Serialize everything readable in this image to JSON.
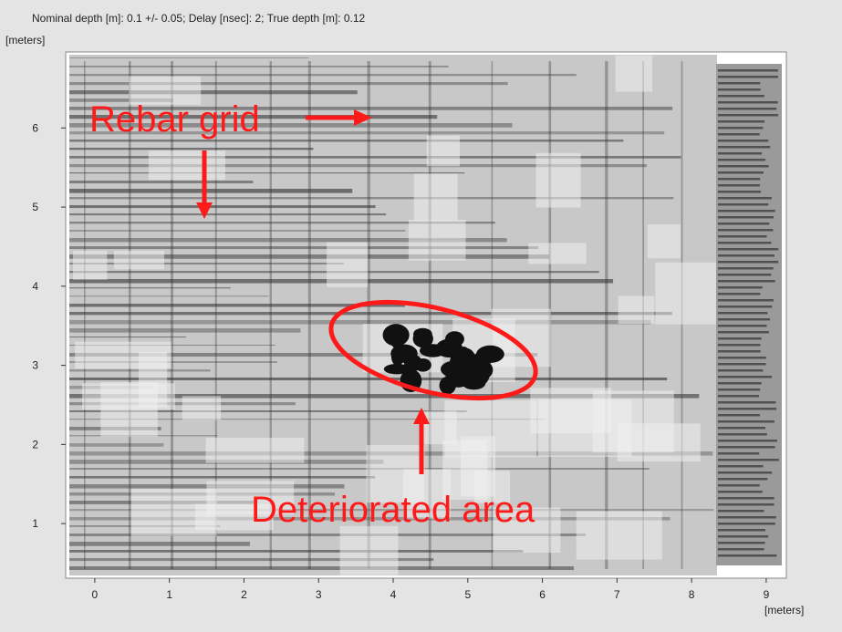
{
  "chart_data": {
    "type": "image",
    "title": "Nominal depth [m]: 0.1 +/- 0.05;  Delay [nsec]: 2;  True depth [m]: 0.12",
    "x_label": "[meters]",
    "y_label": "[meters]",
    "xlim": [
      -0.39,
      9.27
    ],
    "ylim": [
      0.31,
      6.96
    ],
    "xticks": [
      0,
      1,
      2,
      3,
      4,
      5,
      6,
      7,
      8,
      9
    ],
    "yticks": [
      1,
      2,
      3,
      4,
      5,
      6
    ],
    "annotations": [
      "Rebar grid",
      "Deteriorated area"
    ]
  }
}
